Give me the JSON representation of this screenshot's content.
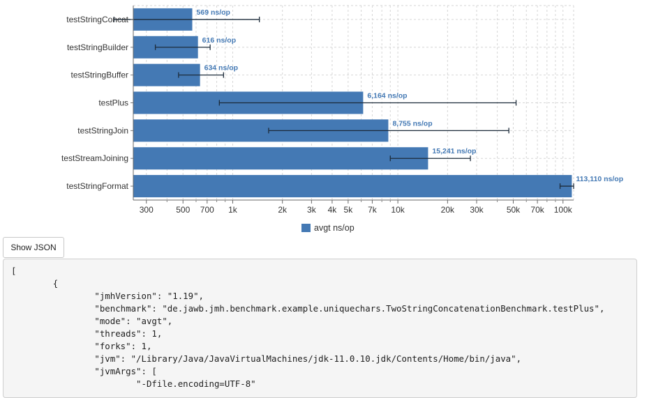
{
  "chart_data": {
    "type": "bar",
    "orientation": "horizontal",
    "x_scale": "log",
    "xlim": [
      250,
      116000
    ],
    "grid": true,
    "categories": [
      "testStringConcat",
      "testStringBuilder",
      "testStringBuffer",
      "testPlus",
      "testStringJoin",
      "testStreamJoining",
      "testStringFormat"
    ],
    "series": [
      {
        "name": "avgt ns/op",
        "color": "#4479b4",
        "values": [
          569,
          616,
          634,
          6164,
          8755,
          15241,
          113110
        ],
        "error_low": [
          191,
          340,
          470,
          830,
          1650,
          9000,
          96000
        ],
        "error_high": [
          1450,
          730,
          880,
          52000,
          47000,
          27500,
          116000
        ],
        "labels": [
          "569 ns/op",
          "616 ns/op",
          "634 ns/op",
          "6,164 ns/op",
          "8,755 ns/op",
          "15,241 ns/op",
          "113,110 ns/op"
        ]
      }
    ],
    "x_ticks": [
      300,
      500,
      700,
      1000,
      2000,
      3000,
      4000,
      5000,
      7000,
      10000,
      20000,
      30000,
      50000,
      70000,
      100000
    ],
    "x_tick_labels": [
      "300",
      "500",
      "700",
      "1k",
      "2k",
      "3k",
      "4k",
      "5k",
      "7k",
      "10k",
      "20k",
      "30k",
      "50k",
      "70k",
      "100k"
    ],
    "x_minor_gridlines": [
      400,
      600,
      800,
      900,
      6000,
      8000,
      9000,
      40000,
      60000,
      80000,
      90000
    ],
    "legend_position": "bottom"
  },
  "json_panel": {
    "button_label": "Show JSON",
    "lines": [
      "[",
      "\t{",
      "\t\t\"jmhVersion\": \"1.19\",",
      "\t\t\"benchmark\": \"de.jawb.jmh.benchmark.example.uniquechars.TwoStringConcatenationBenchmark.testPlus\",",
      "\t\t\"mode\": \"avgt\",",
      "\t\t\"threads\": 1,",
      "\t\t\"forks\": 1,",
      "\t\t\"jvm\": \"/Library/Java/JavaVirtualMachines/jdk-11.0.10.jdk/Contents/Home/bin/java\",",
      "\t\t\"jvmArgs\": [",
      "\t\t\t\"-Dfile.encoding=UTF-8\""
    ]
  }
}
